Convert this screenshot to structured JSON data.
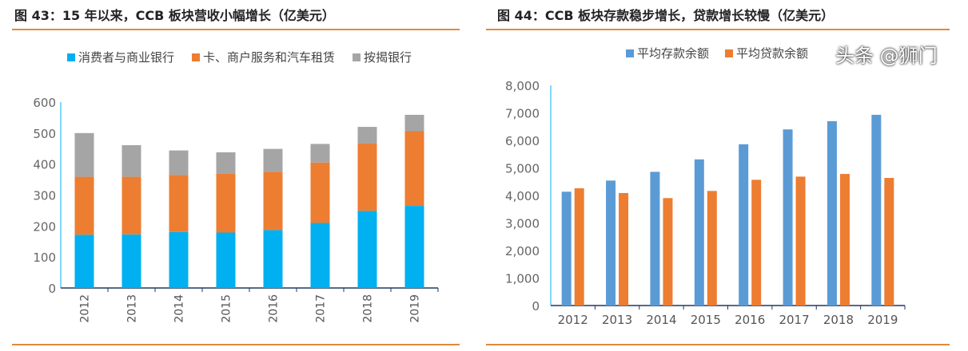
{
  "chart_data": [
    {
      "type": "stacked-bar",
      "title": "图 43：15 年以来，CCB 板块营收小幅增长（亿美元）",
      "categories": [
        "2012",
        "2013",
        "2014",
        "2015",
        "2016",
        "2017",
        "2018",
        "2019"
      ],
      "series": [
        {
          "name": "消费者与商业银行",
          "color": "#00b0f0",
          "values": [
            172,
            173,
            181,
            179,
            187,
            210,
            249,
            265
          ]
        },
        {
          "name": "卡、商户服务和汽车租赁",
          "color": "#ed7d31",
          "values": [
            187,
            186,
            184,
            191,
            188,
            195,
            217,
            241
          ]
        },
        {
          "name": "按揭银行",
          "color": "#a5a5a5",
          "values": [
            141,
            102,
            79,
            68,
            74,
            60,
            54,
            53
          ]
        }
      ],
      "ylim": [
        0,
        600
      ],
      "yticks": [
        "0",
        "100",
        "200",
        "300",
        "400",
        "500",
        "600"
      ],
      "grid": false,
      "legend": "top"
    },
    {
      "type": "bar",
      "title": "图 44：CCB 板块存款稳步增长，贷款增长较慢（亿美元）",
      "categories": [
        "2012",
        "2013",
        "2014",
        "2015",
        "2016",
        "2017",
        "2018",
        "2019"
      ],
      "series": [
        {
          "name": "平均存款余额",
          "color": "#5b9bd5",
          "values": [
            4135,
            4540,
            4858,
            5311,
            5860,
            6400,
            6699,
            6930
          ]
        },
        {
          "name": "平均贷款余额",
          "color": "#ed7d31",
          "values": [
            4260,
            4087,
            3904,
            4164,
            4569,
            4684,
            4781,
            4636
          ]
        }
      ],
      "ylim": [
        0,
        8000
      ],
      "yticks": [
        "0",
        "1,000",
        "2,000",
        "3,000",
        "4,000",
        "5,000",
        "6,000",
        "7,000",
        "8,000"
      ],
      "grid": false,
      "legend": "top"
    }
  ],
  "watermark": "头条 @狮门"
}
